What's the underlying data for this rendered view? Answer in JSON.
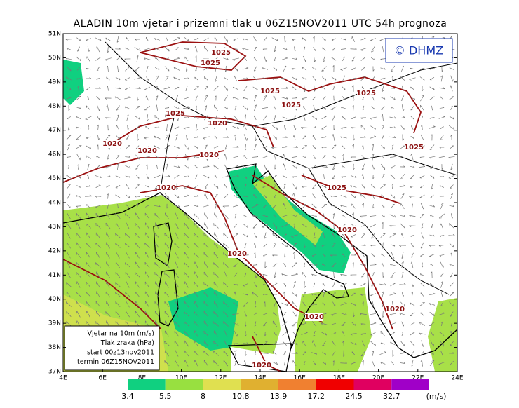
{
  "header": {
    "title": "ALADIN 10m vjetar i prizemni tlak u 06Z15NOV2011 UTC 54h prognoza",
    "copyright": "© DHMZ"
  },
  "map": {
    "lat_labels": [
      "51N",
      "50N",
      "49N",
      "48N",
      "47N",
      "46N",
      "45N",
      "44N",
      "43N",
      "42N",
      "41N",
      "40N",
      "39N",
      "38N",
      "37N"
    ],
    "lon_labels": [
      "4E",
      "6E",
      "8E",
      "10E",
      "12E",
      "14E",
      "16E",
      "18E",
      "20E",
      "22E",
      "24E"
    ],
    "isobar_labels": [
      "1025",
      "1025",
      "1025",
      "1025",
      "1025",
      "1025",
      "1020",
      "1020",
      "1020",
      "1020",
      "1025",
      "1025",
      "1020",
      "1020",
      "1020",
      "1020",
      "1020",
      "1020"
    ]
  },
  "legend": {
    "lines": [
      "Vjetar na 10m (m/s)",
      "Tlak zraka (hPa)",
      "start 00z13nov2011",
      "termin 06Z15NOV2011"
    ]
  },
  "colorbar": {
    "ticks": [
      3.4,
      5.5,
      8,
      10.8,
      13.9,
      17.2,
      24.5,
      32.7
    ],
    "unit": "(m/s)",
    "colors": [
      "#10d080",
      "#98e040",
      "#e0e050",
      "#e0b030",
      "#f08030",
      "#f00000",
      "#e00060",
      "#a000c8"
    ]
  }
}
